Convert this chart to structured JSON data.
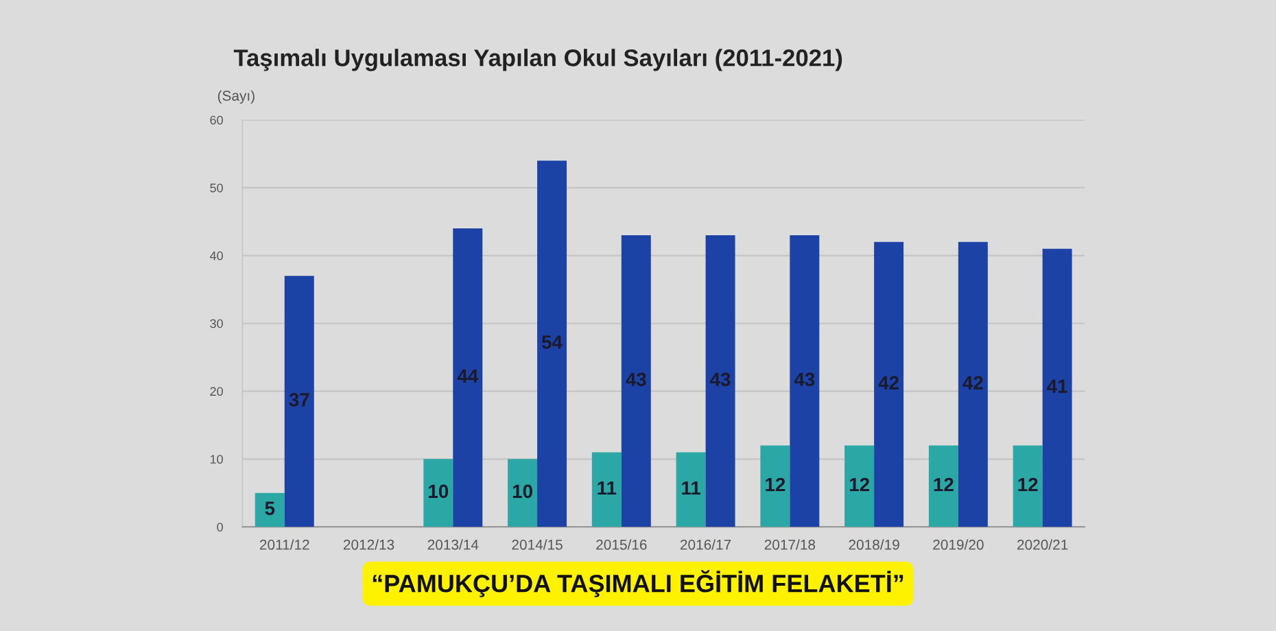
{
  "chart_data": {
    "type": "bar",
    "title": "Taşımalı Uygulaması Yapılan Okul Sayıları (2011-2021)",
    "ylabel": "(Sayı)",
    "categories": [
      "2011/12",
      "2012/13",
      "2013/14",
      "2014/15",
      "2015/16",
      "2016/17",
      "2017/18",
      "2018/19",
      "2019/20",
      "2020/21"
    ],
    "series": [
      {
        "color": "#2ba7a5",
        "values": [
          5,
          null,
          10,
          10,
          11,
          11,
          12,
          12,
          12,
          12
        ]
      },
      {
        "color": "#1d42a6",
        "values": [
          37,
          null,
          44,
          54,
          43,
          43,
          43,
          42,
          42,
          41
        ]
      }
    ],
    "ylim": [
      0,
      60
    ],
    "yticks": [
      0,
      10,
      20,
      30,
      40,
      50,
      60
    ],
    "grid": "y",
    "data_labels": true,
    "annotations": [
      "“PAMUKÇU’DA TAŞIMALI EĞİTİM FELAKETİ”"
    ]
  }
}
